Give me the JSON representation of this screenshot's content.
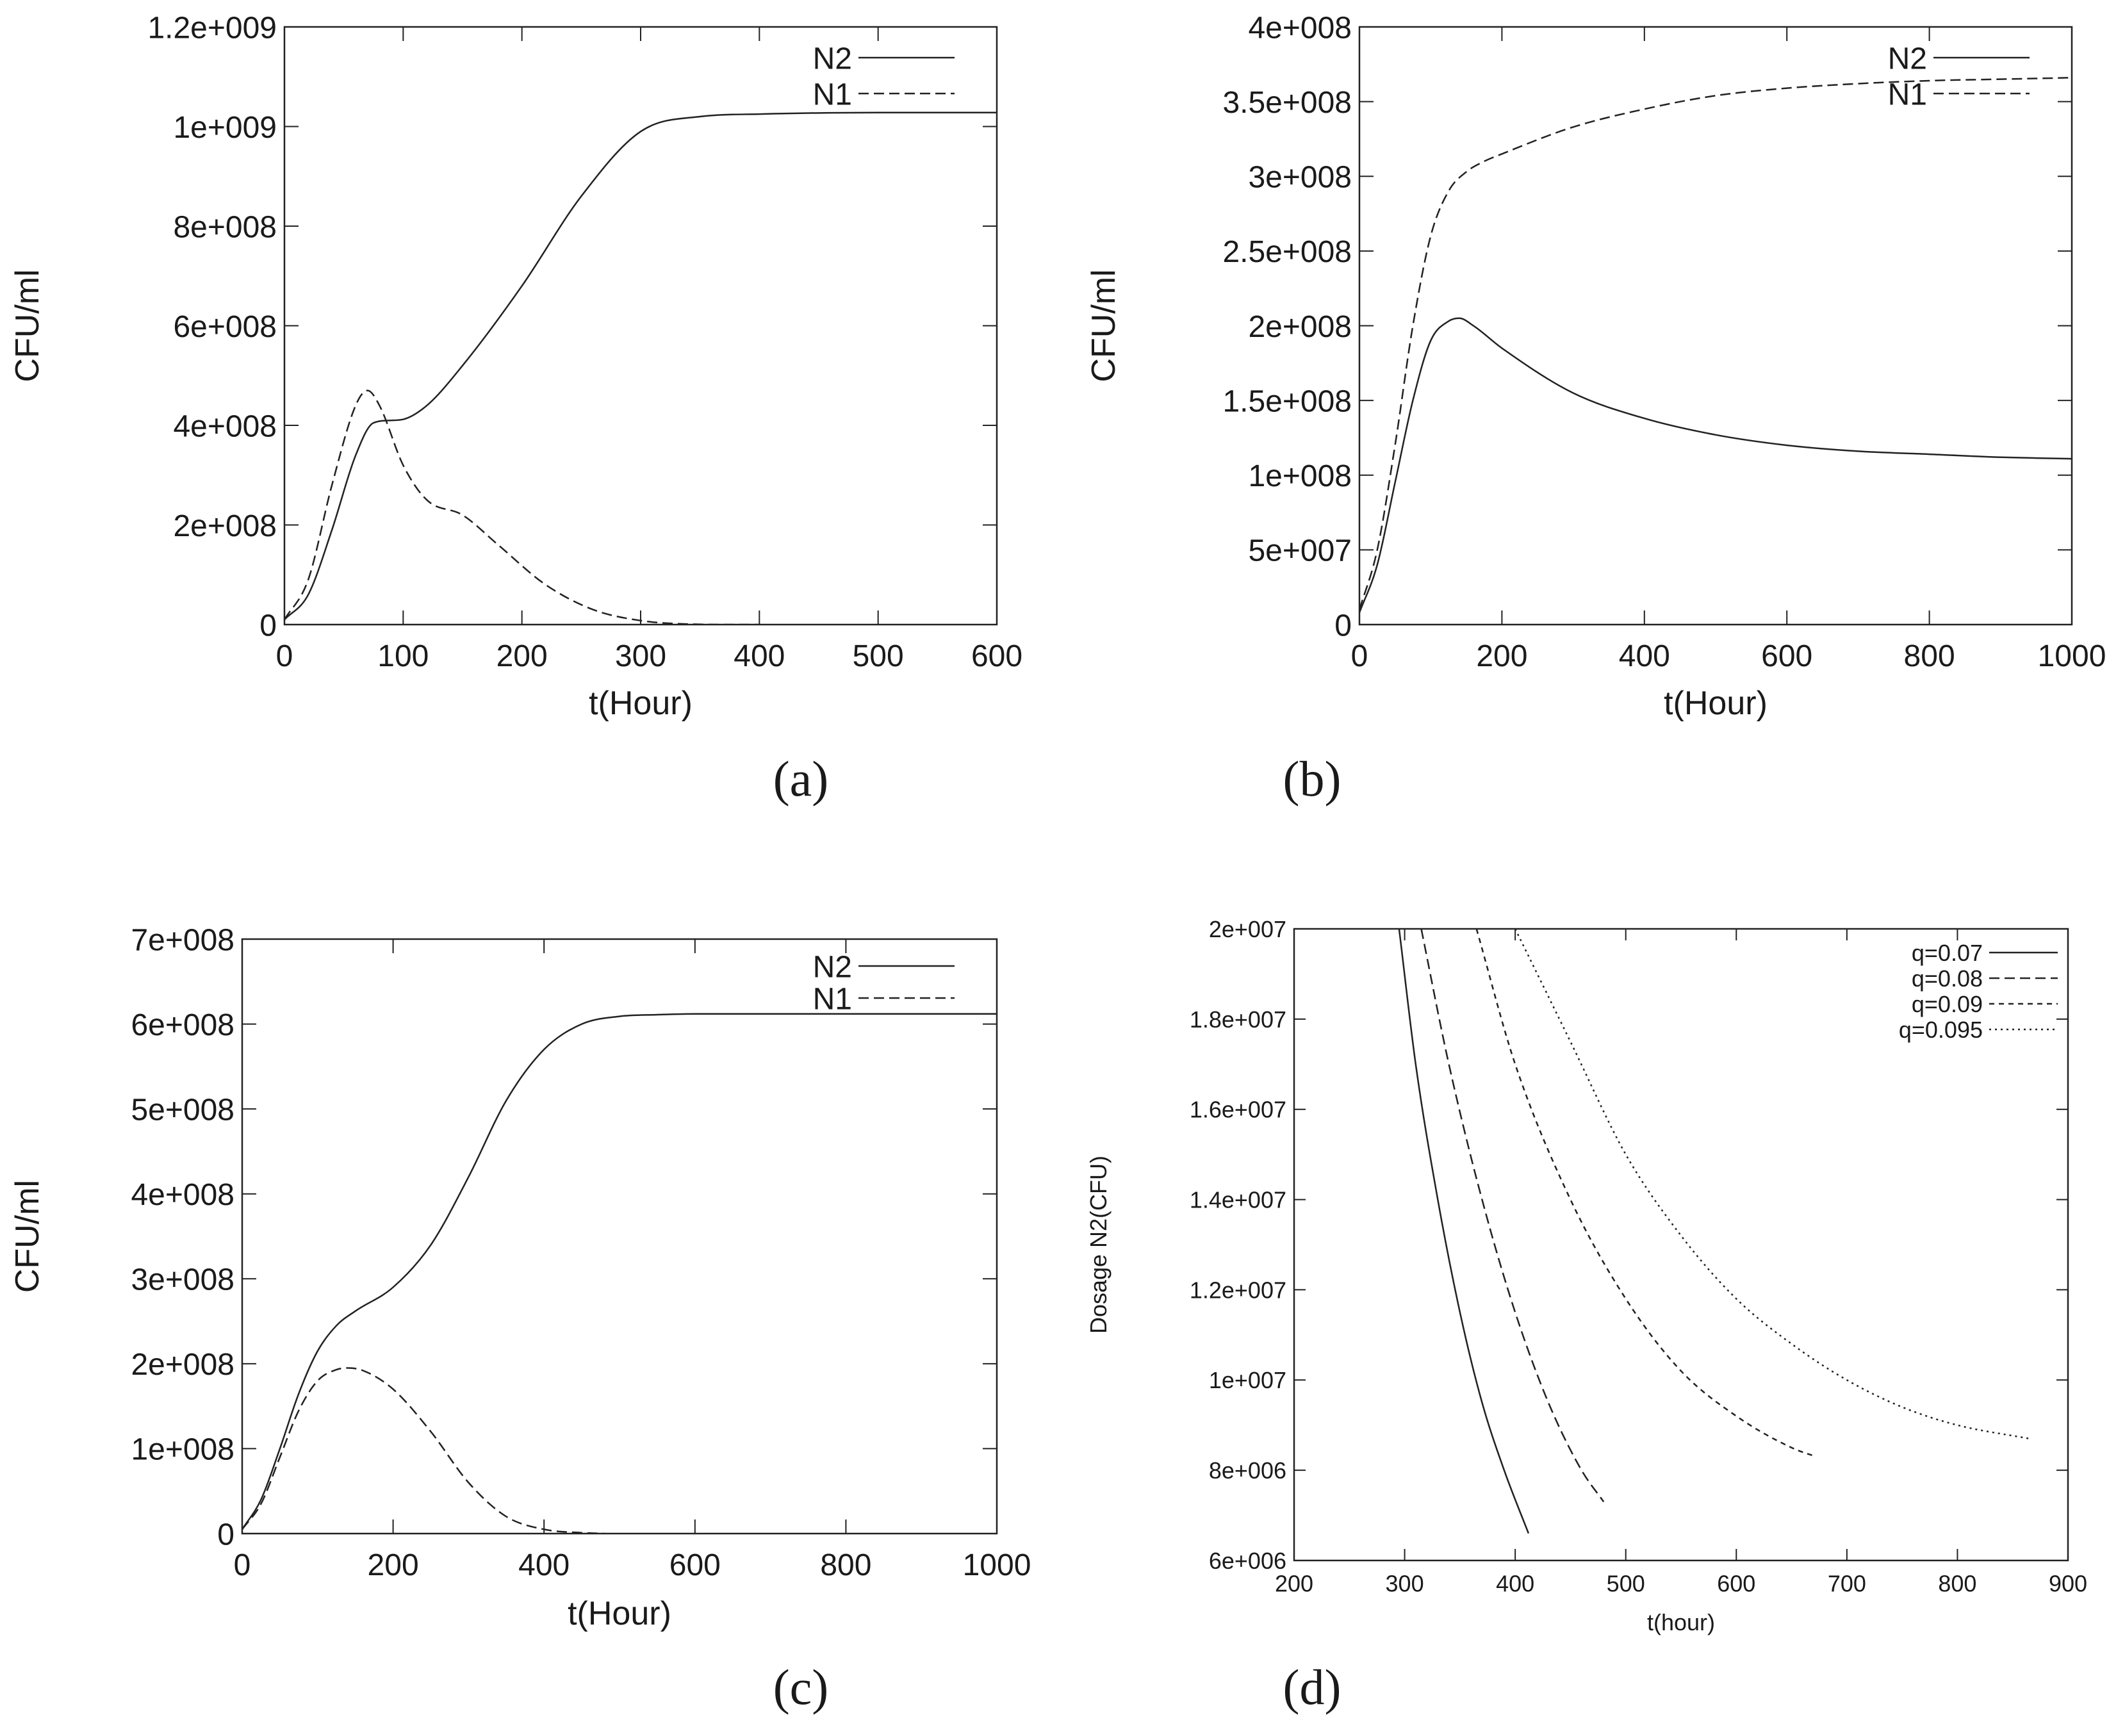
{
  "chart_data": [
    {
      "panel": "a",
      "type": "line",
      "caption": "(a)",
      "xlabel": "t(Hour)",
      "ylabel": "CFU/ml",
      "xlim": [
        0,
        600
      ],
      "ylim": [
        0,
        1200000000
      ],
      "x_ticks": [
        0,
        100,
        200,
        300,
        400,
        500,
        600
      ],
      "x_tick_labels": [
        "0",
        "100",
        "200",
        "300",
        "400",
        "500",
        "600"
      ],
      "y_ticks": [
        0,
        200000000,
        400000000,
        600000000,
        800000000,
        1000000000,
        1200000000
      ],
      "y_tick_labels": [
        "0",
        "2e+008",
        "4e+008",
        "6e+008",
        "8e+008",
        "1e+009",
        "1.2e+009"
      ],
      "legend_position": "top-right",
      "series": [
        {
          "name": "N2",
          "style": "solid",
          "x": [
            0,
            20,
            40,
            60,
            75,
            90,
            100,
            120,
            150,
            200,
            250,
            300,
            350,
            400,
            500,
            600
          ],
          "y": [
            10000000,
            60000000,
            190000000,
            340000000,
            405000000,
            410000000,
            412000000,
            440000000,
            520000000,
            680000000,
            860000000,
            990000000,
            1020000000,
            1025000000,
            1028000000,
            1028000000
          ]
        },
        {
          "name": "N1",
          "style": "dashed",
          "x": [
            0,
            20,
            40,
            60,
            70,
            80,
            100,
            120,
            150,
            180,
            220,
            260,
            300,
            340,
            380,
            400
          ],
          "y": [
            10000000,
            90000000,
            280000000,
            440000000,
            470000000,
            440000000,
            320000000,
            250000000,
            220000000,
            160000000,
            80000000,
            30000000,
            8000000,
            1000000,
            0,
            0
          ]
        }
      ]
    },
    {
      "panel": "b",
      "type": "line",
      "caption": "(b)",
      "xlabel": "t(Hour)",
      "ylabel": "CFU/ml",
      "xlim": [
        0,
        1000
      ],
      "ylim": [
        0,
        400000000
      ],
      "x_ticks": [
        0,
        200,
        400,
        600,
        800,
        1000
      ],
      "x_tick_labels": [
        "0",
        "200",
        "400",
        "600",
        "800",
        "1000"
      ],
      "y_ticks": [
        0,
        50000000,
        100000000,
        150000000,
        200000000,
        250000000,
        300000000,
        350000000,
        400000000
      ],
      "y_tick_labels": [
        "0",
        "5e+007",
        "1e+008",
        "1.5e+008",
        "2e+008",
        "2.5e+008",
        "3e+008",
        "3.5e+008",
        "4e+008"
      ],
      "legend_position": "top-right",
      "series": [
        {
          "name": "N2",
          "style": "solid",
          "x": [
            0,
            25,
            50,
            75,
            100,
            125,
            140,
            160,
            200,
            300,
            400,
            500,
            600,
            700,
            800,
            900,
            1000
          ],
          "y": [
            8000000,
            40000000,
            95000000,
            150000000,
            190000000,
            203000000,
            205000000,
            200000000,
            185000000,
            155000000,
            138000000,
            127000000,
            120000000,
            116000000,
            114000000,
            112000000,
            111000000
          ]
        },
        {
          "name": "N1",
          "style": "dashed",
          "x": [
            0,
            25,
            50,
            75,
            100,
            125,
            150,
            175,
            200,
            300,
            400,
            500,
            600,
            700,
            800,
            900,
            1000
          ],
          "y": [
            10000000,
            50000000,
            120000000,
            200000000,
            260000000,
            290000000,
            303000000,
            310000000,
            315000000,
            333000000,
            345000000,
            354000000,
            359000000,
            362000000,
            364000000,
            365000000,
            366000000
          ]
        }
      ]
    },
    {
      "panel": "c",
      "type": "line",
      "caption": "(c)",
      "xlabel": "t(Hour)",
      "ylabel": "CFU/ml",
      "xlim": [
        0,
        1000
      ],
      "ylim": [
        0,
        700000000
      ],
      "x_ticks": [
        0,
        200,
        400,
        600,
        800,
        1000
      ],
      "x_tick_labels": [
        "0",
        "200",
        "400",
        "600",
        "800",
        "1000"
      ],
      "y_ticks": [
        0,
        100000000,
        200000000,
        300000000,
        400000000,
        500000000,
        600000000,
        700000000
      ],
      "y_tick_labels": [
        "0",
        "1e+008",
        "2e+008",
        "3e+008",
        "4e+008",
        "5e+008",
        "6e+008",
        "7e+008"
      ],
      "legend_position": "top-right",
      "series": [
        {
          "name": "N2",
          "style": "solid",
          "x": [
            0,
            25,
            50,
            75,
            100,
            125,
            150,
            200,
            250,
            300,
            350,
            400,
            450,
            500,
            550,
            600,
            800,
            1000
          ],
          "y": [
            5000000,
            40000000,
            100000000,
            165000000,
            215000000,
            245000000,
            262000000,
            290000000,
            340000000,
            420000000,
            510000000,
            570000000,
            600000000,
            609000000,
            611000000,
            612000000,
            612000000,
            612000000
          ]
        },
        {
          "name": "N1",
          "style": "dashed",
          "x": [
            0,
            25,
            50,
            75,
            100,
            125,
            140,
            160,
            200,
            250,
            300,
            350,
            400,
            450,
            480
          ],
          "y": [
            5000000,
            35000000,
            90000000,
            145000000,
            180000000,
            193000000,
            195000000,
            192000000,
            170000000,
            120000000,
            60000000,
            20000000,
            5000000,
            1000000,
            0
          ]
        }
      ]
    },
    {
      "panel": "d",
      "type": "line",
      "caption": "(d)",
      "xlabel": "t(hour)",
      "ylabel": "Dosage N2(CFU)",
      "xlim": [
        200,
        900
      ],
      "ylim": [
        6000000,
        20000000
      ],
      "x_ticks": [
        200,
        300,
        400,
        500,
        600,
        700,
        800,
        900
      ],
      "x_tick_labels": [
        "200",
        "300",
        "400",
        "500",
        "600",
        "700",
        "800",
        "900"
      ],
      "y_ticks": [
        6000000,
        8000000,
        10000000,
        12000000,
        14000000,
        16000000,
        18000000,
        20000000
      ],
      "y_tick_labels": [
        "6e+006",
        "8e+006",
        "1e+007",
        "1.2e+007",
        "1.4e+007",
        "1.6e+007",
        "1.8e+007",
        "2e+007"
      ],
      "legend_position": "top-right",
      "series": [
        {
          "name": "q=0.07",
          "style": "solid",
          "x": [
            295,
            310,
            330,
            350,
            370,
            390,
            412
          ],
          "y": [
            20000000,
            17000000,
            14000000,
            11500000,
            9500000,
            8000000,
            6600000
          ]
        },
        {
          "name": "q=0.08",
          "style": "dashed",
          "x": [
            315,
            340,
            370,
            400,
            430,
            460,
            480
          ],
          "y": [
            20000000,
            17000000,
            14000000,
            11500000,
            9500000,
            8000000,
            7300000
          ]
        },
        {
          "name": "q=0.09",
          "style": "shortdash",
          "x": [
            365,
            400,
            450,
            500,
            550,
            600,
            650,
            672
          ],
          "y": [
            20000000,
            17000000,
            14000000,
            11800000,
            10200000,
            9200000,
            8500000,
            8300000
          ]
        },
        {
          "name": "q=0.095",
          "style": "dotted",
          "x": [
            400,
            450,
            500,
            550,
            600,
            650,
            700,
            750,
            800,
            865
          ],
          "y": [
            20000000,
            17500000,
            15000000,
            13200000,
            11800000,
            10800000,
            10000000,
            9400000,
            9000000,
            8700000
          ]
        }
      ]
    }
  ]
}
